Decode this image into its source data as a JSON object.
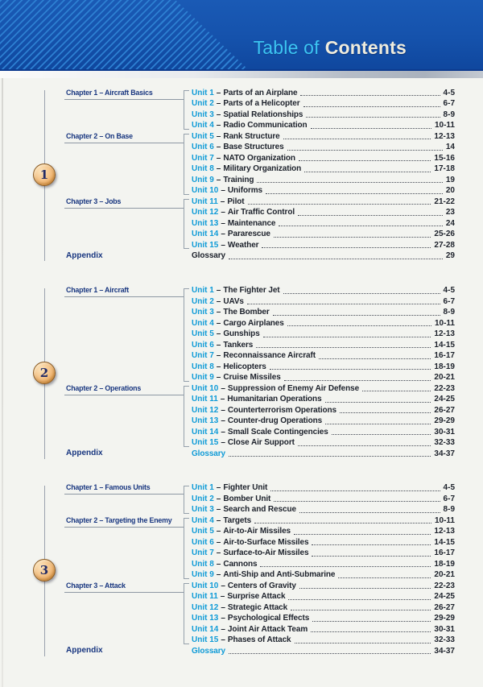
{
  "header": {
    "title_light": "Table of",
    "title_bold": "Contents"
  },
  "sep": "–",
  "palette": {
    "header_blue": "#1552ac",
    "stripe_blue": "#2d80d2",
    "title_cyan": "#3cc5f2",
    "title_cream": "#efecdd",
    "chapter_navy": "#17357f",
    "unit_cyan": "#0f9bd7",
    "text_dark": "#1c212b",
    "line_gray": "#95a0ab",
    "badge_fill": "#f3bd7e",
    "badge_border": "#8a5a22",
    "badge_number": "#222b66"
  },
  "sections": [
    {
      "number": "1",
      "chapters": [
        {
          "label": "Chapter 1 – Aircraft Basics",
          "first_unit": 1,
          "last_unit": 4
        },
        {
          "label": "Chapter 2 – On Base",
          "first_unit": 5,
          "last_unit": 10
        },
        {
          "label": "Chapter 3 – Jobs",
          "first_unit": 11,
          "last_unit": 15
        }
      ],
      "units": [
        {
          "num": "Unit 1",
          "title": "Parts of an Airplane",
          "pages": "4-5"
        },
        {
          "num": "Unit 2",
          "title": "Parts of a Helicopter",
          "pages": "6-7"
        },
        {
          "num": "Unit 3",
          "title": "Spatial Relationships",
          "pages": "8-9"
        },
        {
          "num": "Unit 4",
          "title": "Radio Communication",
          "pages": "10-11"
        },
        {
          "num": "Unit 5",
          "title": "Rank Structure",
          "pages": "12-13"
        },
        {
          "num": "Unit 6",
          "title": "Base Structures",
          "pages": "14"
        },
        {
          "num": "Unit 7",
          "title": "NATO Organization",
          "pages": "15-16"
        },
        {
          "num": "Unit 8",
          "title": "Military Organization",
          "pages": "17-18"
        },
        {
          "num": "Unit 9",
          "title": "Training",
          "pages": "19"
        },
        {
          "num": "Unit 10",
          "title": "Uniforms",
          "pages": "20"
        },
        {
          "num": "Unit 11",
          "title": "Pilot",
          "pages": "21-22"
        },
        {
          "num": "Unit 12",
          "title": "Air Traffic Control",
          "pages": "23"
        },
        {
          "num": "Unit 13",
          "title": "Maintenance",
          "pages": "24"
        },
        {
          "num": "Unit 14",
          "title": "Pararescue",
          "pages": "25-26"
        },
        {
          "num": "Unit 15",
          "title": "Weather",
          "pages": "27-28"
        }
      ],
      "glossary": {
        "label": "Glossary",
        "pages": "29",
        "color": "#1c212b"
      },
      "appendix_label": "Appendix"
    },
    {
      "number": "2",
      "chapters": [
        {
          "label": "Chapter 1 – Aircraft",
          "first_unit": 1,
          "last_unit": 9
        },
        {
          "label": "Chapter 2 – Operations",
          "first_unit": 10,
          "last_unit": 15
        }
      ],
      "units": [
        {
          "num": "Unit 1",
          "title": "The Fighter Jet",
          "pages": "4-5"
        },
        {
          "num": "Unit 2",
          "title": "UAVs",
          "pages": "6-7"
        },
        {
          "num": "Unit 3",
          "title": "The Bomber",
          "pages": "8-9"
        },
        {
          "num": "Unit 4",
          "title": "Cargo Airplanes",
          "pages": "10-11"
        },
        {
          "num": "Unit 5",
          "title": "Gunships",
          "pages": "12-13"
        },
        {
          "num": "Unit 6",
          "title": "Tankers",
          "pages": "14-15"
        },
        {
          "num": "Unit 7",
          "title": "Reconnaissance Aircraft",
          "pages": "16-17"
        },
        {
          "num": "Unit 8",
          "title": "Helicopters",
          "pages": "18-19"
        },
        {
          "num": "Unit 9",
          "title": "Cruise Missiles",
          "pages": "20-21"
        },
        {
          "num": "Unit 10",
          "title": "Suppression of Enemy Air Defense",
          "pages": "22-23"
        },
        {
          "num": "Unit 11",
          "title": "Humanitarian Operations",
          "pages": "24-25"
        },
        {
          "num": "Unit 12",
          "title": "Counterterrorism Operations",
          "pages": "26-27"
        },
        {
          "num": "Unit 13",
          "title": "Counter-drug Operations",
          "pages": "29-29"
        },
        {
          "num": "Unit 14",
          "title": "Small Scale Contingencies",
          "pages": "30-31"
        },
        {
          "num": "Unit 15",
          "title": "Close Air Support",
          "pages": "32-33"
        }
      ],
      "glossary": {
        "label": "Glossary",
        "pages": "34-37",
        "color": "#0f9bd7"
      },
      "appendix_label": "Appendix"
    },
    {
      "number": "3",
      "chapters": [
        {
          "label": "Chapter 1 – Famous Units",
          "first_unit": 1,
          "last_unit": 3
        },
        {
          "label": "Chapter 2 – Targeting the Enemy",
          "first_unit": 4,
          "last_unit": 9
        },
        {
          "label": "Chapter 3 – Attack",
          "first_unit": 10,
          "last_unit": 15
        }
      ],
      "units": [
        {
          "num": "Unit 1",
          "title": "Fighter Unit",
          "pages": "4-5"
        },
        {
          "num": "Unit 2",
          "title": "Bomber Unit",
          "pages": "6-7"
        },
        {
          "num": "Unit 3",
          "title": "Search and Rescue",
          "pages": "8-9"
        },
        {
          "num": "Unit 4",
          "title": "Targets",
          "pages": "10-11"
        },
        {
          "num": "Unit 5",
          "title": "Air-to-Air Missiles",
          "pages": "12-13"
        },
        {
          "num": "Unit 6",
          "title": "Air-to-Surface Missiles",
          "pages": "14-15"
        },
        {
          "num": "Unit 7",
          "title": "Surface-to-Air Missiles",
          "pages": "16-17"
        },
        {
          "num": "Unit 8",
          "title": "Cannons",
          "pages": "18-19"
        },
        {
          "num": "Unit 9",
          "title": "Anti-Ship and Anti-Submarine",
          "pages": "20-21"
        },
        {
          "num": "Unit 10",
          "title": "Centers of Gravity",
          "pages": "22-23"
        },
        {
          "num": "Unit 11",
          "title": "Surprise Attack",
          "pages": "24-25"
        },
        {
          "num": "Unit 12",
          "title": "Strategic Attack",
          "pages": "26-27"
        },
        {
          "num": "Unit 13",
          "title": "Psychological Effects",
          "pages": "29-29"
        },
        {
          "num": "Unit 14",
          "title": "Joint Air Attack Team",
          "pages": "30-31"
        },
        {
          "num": "Unit 15",
          "title": "Phases of Attack",
          "pages": "32-33"
        }
      ],
      "glossary": {
        "label": "Glossary",
        "pages": "34-37",
        "color": "#0f9bd7"
      },
      "appendix_label": "Appendix"
    }
  ]
}
